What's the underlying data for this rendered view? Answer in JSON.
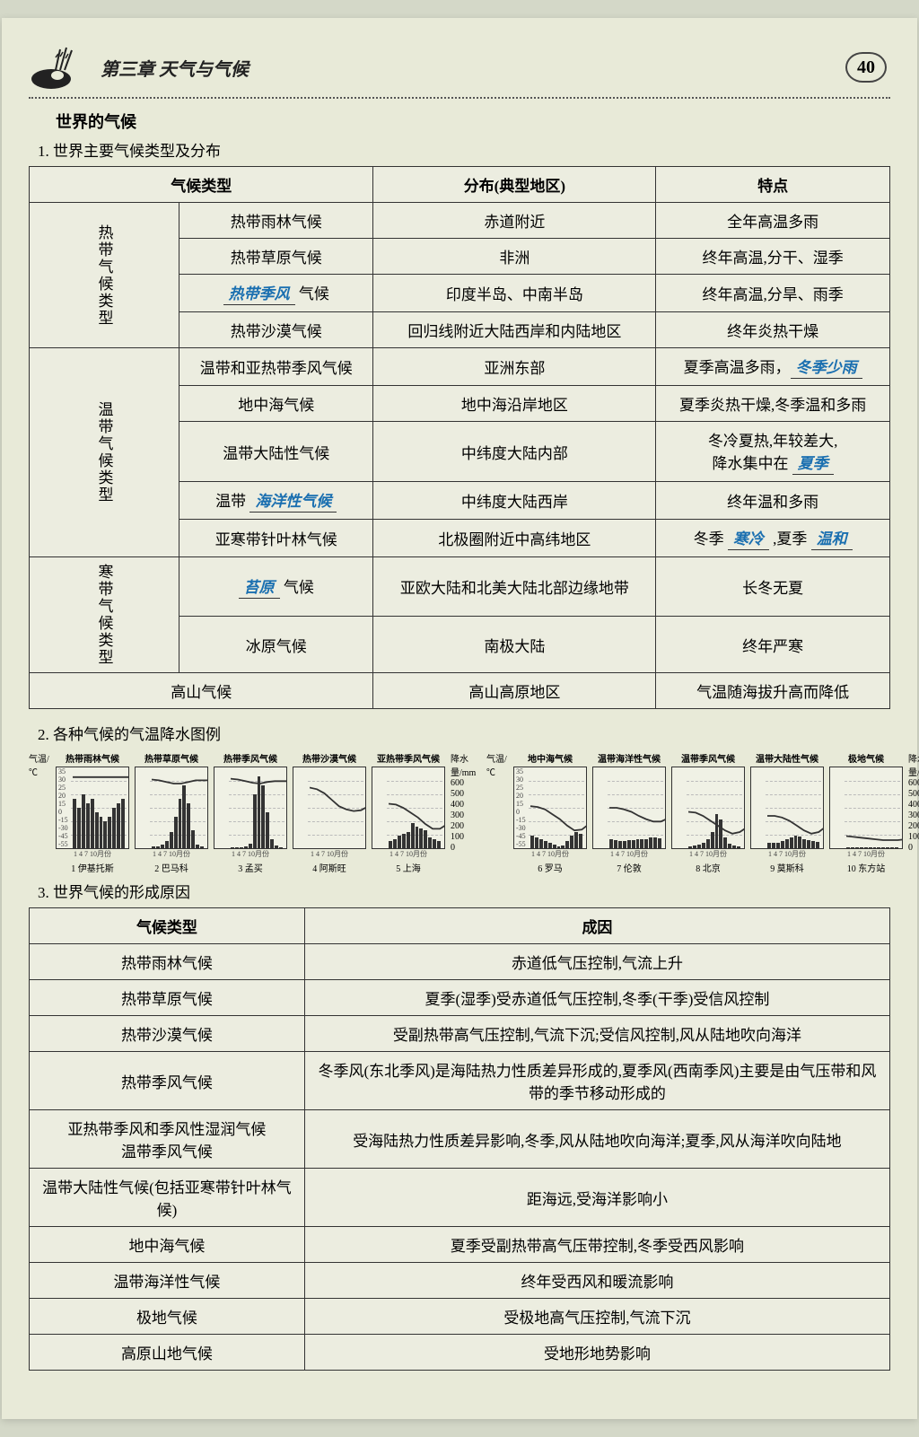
{
  "header": {
    "chapter": "第三章  天气与气候",
    "page_number": "40"
  },
  "main_title": "世界的气候",
  "section1": {
    "heading": "1. 世界主要气候类型及分布",
    "headers": {
      "type": "气候类型",
      "dist": "分布(典型地区)",
      "feat": "特点"
    },
    "groups": [
      {
        "label": "热带气候类型",
        "rows": [
          {
            "type": "热带雨林气候",
            "dist": "赤道附近",
            "feat": "全年高温多雨"
          },
          {
            "type": "热带草原气候",
            "dist": "非洲",
            "feat": "终年高温,分干、湿季"
          },
          {
            "type_prefix": "",
            "type_fill": "热带季风",
            "type_suffix": "  气候",
            "dist": "印度半岛、中南半岛",
            "feat": "终年高温,分旱、雨季"
          },
          {
            "type": "热带沙漠气候",
            "dist": "回归线附近大陆西岸和内陆地区",
            "feat": "终年炎热干燥"
          }
        ]
      },
      {
        "label": "温带气候类型",
        "rows": [
          {
            "type": "温带和亚热带季风气候",
            "dist": "亚洲东部",
            "feat_prefix": "夏季高温多雨，",
            "feat_fill": "冬季少雨"
          },
          {
            "type": "地中海气候",
            "dist": "地中海沿岸地区",
            "feat": "夏季炎热干燥,冬季温和多雨"
          },
          {
            "type": "温带大陆性气候",
            "dist": "中纬度大陆内部",
            "feat_prefix": "冬冷夏热,年较差大,<br>降水集中在 ",
            "feat_fill": "夏季"
          },
          {
            "type_prefix": "温带 ",
            "type_fill": "海洋性气候",
            "dist": "中纬度大陆西岸",
            "feat": "终年温和多雨"
          },
          {
            "type": "亚寒带针叶林气候",
            "dist": "北极圈附近中高纬地区",
            "feat_prefix": "冬季 ",
            "feat_fill": "寒冷",
            "feat_mid": " ,夏季 ",
            "feat_fill2": "温和"
          }
        ]
      },
      {
        "label": "寒带气候类型",
        "rows": [
          {
            "type_fill": "苔原",
            "type_suffix": "  气候",
            "dist": "亚欧大陆和北美大陆北部边缘地带",
            "feat": "长冬无夏"
          },
          {
            "type": "冰原气候",
            "dist": "南极大陆",
            "feat": "终年严寒"
          }
        ]
      }
    ],
    "last_row": {
      "type": "高山气候",
      "dist": "高山高原地区",
      "feat": "气温随海拔升高而降低"
    }
  },
  "section2": {
    "heading": "2. 各种气候的气温降水图例",
    "y_left_label": "气温/℃",
    "y_right_label": "降水量/mm",
    "y_left_ticks": [
      "35",
      "30",
      "25",
      "20",
      "15",
      "0",
      "-15",
      "-30",
      "-45",
      "-55"
    ],
    "y_right_ticks": [
      "600",
      "500",
      "400",
      "300",
      "200",
      "100",
      "0"
    ],
    "x_label": "1  4  7  10月份",
    "charts_left": [
      {
        "title": "热带雨林气候",
        "caption": "1 伊基托斯",
        "precip": [
          55,
          45,
          60,
          50,
          55,
          40,
          35,
          30,
          35,
          45,
          50,
          55
        ],
        "temp": [
          12,
          12,
          12,
          12,
          12,
          12,
          12,
          12,
          12,
          12,
          12,
          12
        ]
      },
      {
        "title": "热带草原气候",
        "caption": "2 巴马科",
        "precip": [
          2,
          2,
          4,
          8,
          18,
          35,
          55,
          70,
          50,
          20,
          4,
          2
        ],
        "temp": [
          15,
          16,
          18,
          20,
          20,
          18,
          16,
          16,
          16,
          17,
          17,
          15
        ]
      },
      {
        "title": "热带季风气候",
        "caption": "3 孟买",
        "precip": [
          1,
          1,
          1,
          2,
          5,
          60,
          80,
          70,
          40,
          10,
          3,
          1
        ],
        "temp": [
          14,
          15,
          17,
          19,
          20,
          18,
          17,
          17,
          17,
          18,
          17,
          15
        ]
      },
      {
        "title": "热带沙漠气候",
        "caption": "4 阿斯旺",
        "precip": [
          0,
          0,
          0,
          0,
          0,
          0,
          0,
          0,
          0,
          0,
          0,
          0
        ],
        "temp": [
          25,
          27,
          32,
          40,
          48,
          52,
          54,
          53,
          48,
          40,
          32,
          26
        ]
      },
      {
        "title": "亚热带季风气候",
        "caption": "5 上海",
        "precip": [
          8,
          10,
          14,
          16,
          18,
          28,
          24,
          22,
          20,
          12,
          10,
          8
        ],
        "temp": [
          45,
          46,
          50,
          56,
          62,
          70,
          76,
          76,
          70,
          60,
          52,
          46
        ]
      }
    ],
    "charts_right": [
      {
        "title": "地中海气候",
        "caption": "6 罗马",
        "precip": [
          14,
          12,
          10,
          8,
          6,
          4,
          2,
          3,
          8,
          14,
          18,
          16
        ],
        "temp": [
          48,
          49,
          52,
          58,
          64,
          72,
          78,
          77,
          70,
          62,
          54,
          48
        ]
      },
      {
        "title": "温带海洋性气候",
        "caption": "7 伦敦",
        "precip": [
          10,
          9,
          8,
          8,
          9,
          9,
          10,
          10,
          10,
          12,
          12,
          11
        ],
        "temp": [
          50,
          50,
          52,
          55,
          60,
          64,
          67,
          67,
          63,
          58,
          53,
          50
        ]
      },
      {
        "title": "温带季风气候",
        "caption": "8 北京",
        "precip": [
          2,
          3,
          4,
          6,
          10,
          18,
          38,
          32,
          12,
          5,
          3,
          2
        ],
        "temp": [
          55,
          56,
          60,
          66,
          72,
          78,
          82,
          80,
          74,
          66,
          58,
          55
        ]
      },
      {
        "title": "温带大陆性气候",
        "caption": "9 莫斯科",
        "precip": [
          6,
          6,
          6,
          8,
          10,
          12,
          14,
          13,
          10,
          9,
          8,
          7
        ],
        "temp": [
          60,
          60,
          62,
          66,
          72,
          78,
          82,
          80,
          73,
          66,
          61,
          60
        ]
      },
      {
        "title": "极地气候",
        "caption": "10 东方站",
        "precip": [
          1,
          1,
          1,
          1,
          1,
          1,
          1,
          1,
          1,
          1,
          1,
          1
        ],
        "temp": [
          85,
          86,
          87,
          88,
          89,
          90,
          90,
          90,
          89,
          88,
          86,
          85
        ]
      }
    ]
  },
  "section3": {
    "heading": "3. 世界气候的形成原因",
    "headers": {
      "type": "气候类型",
      "cause": "成因"
    },
    "rows": [
      {
        "type": "热带雨林气候",
        "cause": "赤道低气压控制,气流上升"
      },
      {
        "type": "热带草原气候",
        "cause": "夏季(湿季)受赤道低气压控制,冬季(干季)受信风控制"
      },
      {
        "type": "热带沙漠气候",
        "cause": "受副热带高气压控制,气流下沉;受信风控制,风从陆地吹向海洋"
      },
      {
        "type": "热带季风气候",
        "cause": "冬季风(东北季风)是海陆热力性质差异形成的,夏季风(西南季风)主要是由气压带和风带的季节移动形成的"
      },
      {
        "type": "亚热带季风和季风性湿润气候<br>温带季风气候",
        "cause": "受海陆热力性质差异影响,冬季,风从陆地吹向海洋;夏季,风从海洋吹向陆地"
      },
      {
        "type": "温带大陆性气候(包括亚寒带针叶林气候)",
        "cause": "距海远,受海洋影响小"
      },
      {
        "type": "地中海气候",
        "cause": "夏季受副热带高气压带控制,冬季受西风影响"
      },
      {
        "type": "温带海洋性气候",
        "cause": "终年受西风和暖流影响"
      },
      {
        "type": "极地气候",
        "cause": "受极地高气压控制,气流下沉"
      },
      {
        "type": "高原山地气候",
        "cause": "受地形地势影响"
      }
    ]
  }
}
